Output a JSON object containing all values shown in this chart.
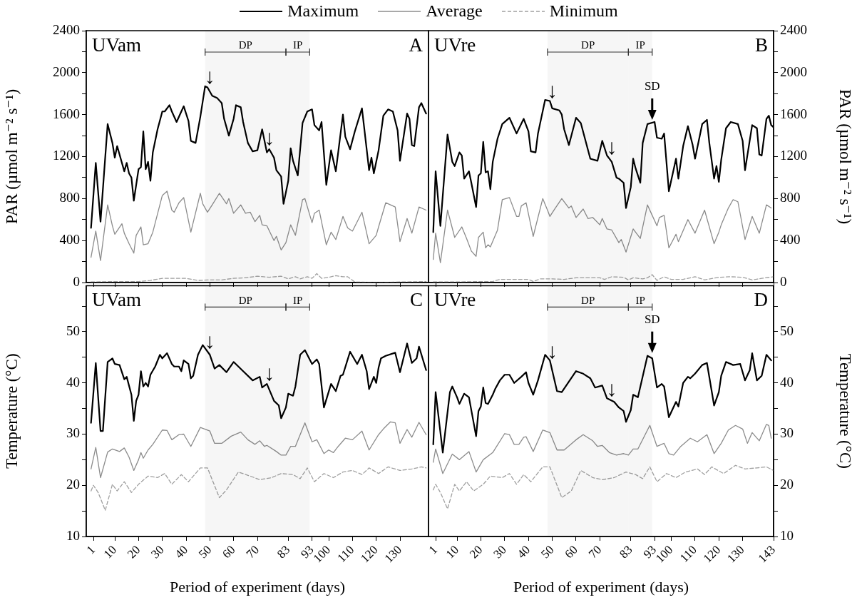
{
  "chart_data": [
    {
      "type": "line",
      "ylabel": "PAR (µmol m⁻² s⁻¹)",
      "xlim": [
        -2,
        142
      ],
      "xticks": [
        1,
        10,
        20,
        30,
        40,
        50,
        60,
        70,
        83,
        93,
        100,
        110,
        120,
        130
      ],
      "ylim": [
        0,
        2400
      ],
      "yticks": [
        0,
        {
          "value": 200,
          "label": null
        },
        400,
        {
          "value": 600,
          "label": null
        },
        800,
        {
          "value": 1000,
          "label": null
        },
        1200,
        {
          "value": 1400,
          "label": null
        },
        1600,
        {
          "value": 1800,
          "label": null
        },
        2000,
        {
          "value": 2200,
          "label": null
        },
        2400
      ],
      "tick_labels": "y",
      "legend": "top",
      "series": [
        {
          "name": "Maximum",
          "color": "#000000",
          "line_style": "solid",
          "x": [
            0,
            2,
            4,
            7,
            9,
            10,
            11,
            14,
            15,
            16,
            17,
            18,
            20,
            21,
            22,
            23,
            24,
            25,
            26,
            28,
            30,
            31,
            33,
            34,
            36,
            38,
            39,
            41,
            42,
            44,
            46,
            48,
            49,
            51,
            53,
            55,
            56,
            58,
            60,
            61,
            63,
            64,
            66,
            68,
            70,
            72,
            74,
            75,
            77,
            78,
            80,
            81,
            83,
            84,
            85,
            87,
            89,
            91,
            93,
            94,
            96,
            97,
            99,
            101,
            103,
            106,
            107,
            109,
            111,
            114,
            117,
            118,
            119,
            121,
            123,
            125,
            127,
            129,
            130,
            133,
            134,
            135,
            136,
            138,
            139,
            141
          ],
          "values": [
            520,
            1140,
            580,
            1510,
            1330,
            1190,
            1300,
            1060,
            1140,
            1040,
            1000,
            780,
            1080,
            1100,
            1440,
            1080,
            1150,
            970,
            1240,
            1460,
            1630,
            1630,
            1690,
            1630,
            1530,
            1630,
            1680,
            1540,
            1350,
            1330,
            1580,
            1870,
            1860,
            1780,
            1760,
            1710,
            1560,
            1400,
            1560,
            1690,
            1670,
            1530,
            1330,
            1250,
            1260,
            1460,
            1240,
            1270,
            1190,
            1070,
            1010,
            750,
            970,
            1280,
            1160,
            1020,
            1520,
            1630,
            1650,
            1500,
            1450,
            1530,
            930,
            1260,
            1060,
            1600,
            1390,
            1270,
            1440,
            1660,
            1070,
            1190,
            1040,
            1260,
            1590,
            1650,
            1630,
            1450,
            1160,
            1610,
            1560,
            1310,
            1300,
            1670,
            1710,
            1610
          ]
        },
        {
          "name": "Average",
          "color": "#8c8c8c",
          "line_style": "solid",
          "x": [
            0,
            2,
            4,
            7,
            9,
            10,
            13,
            14,
            16,
            18,
            19,
            21,
            22,
            24,
            26,
            30,
            32,
            34,
            35,
            37,
            39,
            42,
            46,
            47,
            49,
            51,
            54,
            57,
            58,
            60,
            63,
            65,
            67,
            69,
            71,
            72,
            74,
            77,
            78,
            80,
            82,
            84,
            86,
            89,
            90,
            93,
            94,
            96,
            99,
            101,
            103,
            106,
            108,
            110,
            114,
            117,
            120,
            121,
            124,
            128,
            130,
            133,
            135,
            138,
            141
          ],
          "values": [
            240,
            490,
            210,
            740,
            540,
            460,
            560,
            470,
            370,
            280,
            450,
            530,
            360,
            370,
            480,
            830,
            870,
            690,
            670,
            760,
            810,
            480,
            850,
            750,
            670,
            740,
            850,
            750,
            800,
            660,
            740,
            660,
            670,
            580,
            640,
            550,
            540,
            400,
            440,
            310,
            380,
            550,
            450,
            790,
            800,
            570,
            660,
            690,
            360,
            480,
            410,
            630,
            520,
            490,
            670,
            370,
            450,
            530,
            760,
            720,
            390,
            610,
            470,
            720,
            690
          ]
        },
        {
          "name": "Minimum",
          "color": "#a0a0a0",
          "line_style": "dashed",
          "x": [
            0,
            10,
            20,
            25,
            30,
            40,
            45,
            50,
            55,
            60,
            65,
            70,
            75,
            80,
            83,
            86,
            88,
            91,
            93,
            95,
            97,
            100,
            103,
            106,
            108,
            111,
            120,
            130,
            141
          ],
          "values": [
            5,
            10,
            10,
            20,
            40,
            40,
            20,
            25,
            25,
            40,
            45,
            60,
            50,
            60,
            35,
            55,
            35,
            55,
            40,
            85,
            40,
            50,
            65,
            55,
            55,
            5,
            0,
            5,
            10
          ]
        }
      ],
      "bands": [
        {
          "axis": "x",
          "from": 48,
          "to": 82,
          "label": "DP"
        },
        {
          "axis": "x",
          "from": 82,
          "to": 92,
          "label": "IP"
        }
      ],
      "annotations": [
        "UVam",
        "A",
        {
          "text": "↓",
          "x": 50,
          "y": 1880
        },
        {
          "text": "↓",
          "x": 75,
          "y": 1300
        }
      ]
    },
    {
      "type": "line",
      "ylabel": "PAR (µmol m⁻² s⁻¹)",
      "xlim": [
        -2,
        143
      ],
      "xticks": [
        1,
        10,
        20,
        30,
        40,
        50,
        60,
        70,
        83,
        93,
        100,
        110,
        120,
        130,
        143
      ],
      "ylim": [
        0,
        2400
      ],
      "yticks": [
        0,
        {
          "value": 200,
          "label": null
        },
        400,
        {
          "value": 600,
          "label": null
        },
        800,
        {
          "value": 1000,
          "label": null
        },
        1200,
        {
          "value": 1400,
          "label": null
        },
        1600,
        {
          "value": 1800,
          "label": null
        },
        2000,
        {
          "value": 2200,
          "label": null
        },
        2400
      ],
      "tick_labels": "y",
      "series": [
        {
          "color": "#000000",
          "line_style": "solid",
          "x": [
            0,
            1,
            3,
            6,
            8,
            9,
            11,
            12,
            13,
            15,
            16,
            18,
            19,
            20,
            21,
            22,
            23,
            24,
            25,
            27,
            29,
            32,
            35,
            38,
            40,
            41,
            43,
            44,
            47,
            49,
            50,
            53,
            54,
            55,
            57,
            60,
            62,
            64,
            66,
            69,
            71,
            73,
            74,
            75,
            77,
            78,
            80,
            81,
            83,
            84,
            85,
            87,
            88,
            90,
            93,
            94,
            96,
            97,
            99,
            102,
            103,
            105,
            107,
            109,
            110,
            113,
            115,
            116,
            118,
            119,
            120,
            121,
            123,
            125,
            128,
            130,
            131,
            134,
            136,
            137,
            138,
            140,
            141,
            142,
            143
          ],
          "values": [
            480,
            1060,
            540,
            1410,
            1150,
            1110,
            1240,
            1210,
            990,
            1060,
            950,
            720,
            1020,
            1040,
            1340,
            1050,
            1060,
            890,
            1150,
            1370,
            1510,
            1570,
            1420,
            1560,
            1440,
            1250,
            1240,
            1420,
            1740,
            1730,
            1660,
            1640,
            1600,
            1460,
            1310,
            1570,
            1520,
            1350,
            1180,
            1160,
            1350,
            1210,
            1180,
            1150,
            1000,
            990,
            950,
            710,
            910,
            1180,
            1090,
            950,
            1330,
            1510,
            1530,
            1380,
            1370,
            1420,
            870,
            1180,
            990,
            1300,
            1490,
            1310,
            1180,
            1510,
            1550,
            1330,
            990,
            1110,
            960,
            1170,
            1470,
            1530,
            1510,
            1350,
            1070,
            1500,
            1470,
            1220,
            1210,
            1560,
            1590,
            1500,
            1480
          ]
        },
        {
          "color": "#8c8c8c",
          "line_style": "solid",
          "x": [
            0,
            1,
            3,
            6,
            9,
            12,
            14,
            16,
            18,
            19,
            21,
            22,
            23,
            24,
            27,
            29,
            32,
            35,
            36,
            37,
            39,
            42,
            46,
            48,
            49,
            51,
            54,
            57,
            58,
            60,
            63,
            65,
            67,
            70,
            71,
            73,
            75,
            78,
            79,
            81,
            84,
            85,
            87,
            90,
            92,
            94,
            95,
            97,
            99,
            102,
            103,
            107,
            110,
            114,
            118,
            120,
            121,
            124,
            126,
            128,
            131,
            134,
            137,
            140,
            142
          ],
          "values": [
            220,
            470,
            190,
            690,
            430,
            530,
            420,
            300,
            250,
            430,
            480,
            330,
            360,
            340,
            500,
            790,
            810,
            630,
            630,
            730,
            760,
            440,
            800,
            690,
            630,
            700,
            800,
            710,
            730,
            620,
            700,
            610,
            620,
            550,
            610,
            510,
            500,
            380,
            410,
            290,
            510,
            480,
            420,
            740,
            640,
            540,
            620,
            640,
            330,
            460,
            390,
            600,
            470,
            690,
            370,
            480,
            550,
            710,
            790,
            770,
            410,
            630,
            470,
            740,
            710
          ]
        },
        {
          "color": "#a0a0a0",
          "line_style": "dashed",
          "x": [
            0,
            10,
            20,
            25,
            28,
            35,
            40,
            42,
            45,
            50,
            55,
            60,
            65,
            70,
            72,
            75,
            80,
            82,
            84,
            88,
            90,
            92,
            94,
            97,
            100,
            105,
            110,
            114,
            120,
            125,
            130,
            134,
            138,
            143
          ],
          "values": [
            5,
            5,
            10,
            10,
            30,
            30,
            30,
            10,
            35,
            35,
            30,
            45,
            45,
            45,
            30,
            55,
            50,
            25,
            45,
            35,
            45,
            75,
            20,
            55,
            30,
            30,
            55,
            25,
            50,
            55,
            50,
            25,
            40,
            55
          ]
        }
      ],
      "bands": [
        {
          "axis": "x",
          "from": 48,
          "to": 82,
          "label": "DP"
        },
        {
          "axis": "x",
          "from": 82,
          "to": 92,
          "label": "IP"
        }
      ],
      "annotations": [
        "UVre",
        "B",
        {
          "text": "↓",
          "x": 50,
          "y": 1750
        },
        {
          "text": "↓",
          "x": 75,
          "y": 1210
        },
        {
          "text": "SD",
          "x": 92,
          "y": 1523
        }
      ]
    },
    {
      "type": "line",
      "xlabel": "Period of experiment (days)",
      "ylabel": "Temperature (°C)",
      "xlim": [
        -2,
        142
      ],
      "xticks": [
        1,
        10,
        20,
        30,
        40,
        50,
        60,
        70,
        83,
        93,
        100,
        110,
        120,
        130
      ],
      "ylim": [
        10,
        59
      ],
      "yticks": [
        10,
        {
          "value": 15,
          "label": null
        },
        20,
        {
          "value": 25,
          "label": null
        },
        30,
        {
          "value": 35,
          "label": null
        },
        40,
        {
          "value": 45,
          "label": null
        },
        50,
        {
          "value": 55,
          "label": null
        }
      ],
      "series": [
        {
          "color": "#000000",
          "line_style": "solid",
          "x": [
            0,
            2,
            4,
            5,
            7,
            9,
            10,
            12,
            13,
            14,
            15,
            17,
            18,
            19,
            20,
            21,
            22,
            23,
            24,
            25,
            27,
            29,
            30,
            32,
            34,
            35,
            37,
            38,
            39,
            41,
            42,
            43,
            45,
            47,
            50,
            52,
            54,
            57,
            60,
            64,
            68,
            71,
            72,
            74,
            77,
            79,
            80,
            82,
            83,
            85,
            86,
            88,
            90,
            93,
            95,
            96,
            98,
            101,
            103,
            105,
            106,
            109,
            112,
            114,
            116,
            117,
            119,
            120,
            121,
            122,
            124,
            128,
            130,
            133,
            135,
            137,
            138,
            141
          ],
          "values": [
            32.2,
            43.9,
            30.6,
            30.6,
            44.1,
            44.8,
            43.7,
            43.5,
            42.1,
            40.7,
            41.2,
            37.7,
            32.6,
            36.5,
            37.7,
            42.3,
            39.3,
            40.0,
            39.3,
            41.6,
            43.2,
            45.5,
            44.8,
            45.8,
            43.7,
            43.2,
            43.2,
            42.3,
            44.4,
            43.7,
            40.9,
            41.4,
            45.5,
            47.4,
            45.5,
            42.8,
            43.5,
            42.1,
            44.1,
            42.3,
            40.5,
            41.2,
            39.1,
            39.8,
            36.5,
            35.6,
            33.1,
            35.2,
            37.9,
            37.5,
            39.3,
            45.5,
            46.4,
            43.7,
            44.6,
            43.7,
            35.2,
            39.8,
            38.4,
            41.4,
            41.6,
            46.1,
            43.7,
            45.5,
            42.3,
            38.8,
            41.2,
            40.0,
            43.0,
            44.8,
            45.3,
            45.9,
            42.1,
            47.7,
            43.9,
            44.8,
            47.1,
            42.5
          ]
        },
        {
          "color": "#8c8c8c",
          "line_style": "solid",
          "x": [
            0,
            2,
            4,
            7,
            9,
            12,
            14,
            16,
            18,
            20,
            21,
            22,
            24,
            26,
            30,
            32,
            34,
            37,
            39,
            42,
            46,
            50,
            52,
            55,
            59,
            63,
            66,
            69,
            71,
            73,
            74,
            78,
            80,
            82,
            84,
            86,
            90,
            93,
            95,
            98,
            100,
            102,
            104,
            107,
            110,
            114,
            117,
            121,
            123,
            126,
            128,
            130,
            133,
            135,
            138,
            141
          ],
          "values": [
            23.2,
            27.4,
            21.5,
            26.5,
            27.1,
            26.6,
            27.3,
            25.5,
            22.9,
            25.0,
            26.4,
            25.3,
            26.9,
            28.0,
            30.8,
            30.7,
            28.9,
            29.9,
            30.0,
            27.6,
            31.3,
            30.6,
            28.2,
            28.2,
            29.6,
            30.4,
            28.9,
            28.0,
            28.7,
            27.6,
            27.8,
            26.6,
            25.9,
            25.9,
            27.6,
            27.6,
            32.2,
            28.5,
            28.9,
            26.2,
            26.9,
            26.4,
            27.6,
            29.2,
            28.9,
            30.6,
            26.9,
            29.9,
            31.0,
            32.4,
            32.2,
            28.2,
            30.9,
            29.4,
            32.3,
            29.9
          ]
        },
        {
          "color": "#a0a0a0",
          "line_style": "dashed",
          "x": [
            0,
            1,
            3,
            6,
            9,
            11,
            14,
            17,
            20,
            24,
            28,
            31,
            34,
            38,
            41,
            46,
            49,
            54,
            57,
            62,
            67,
            71,
            76,
            80,
            85,
            88,
            91,
            94,
            98,
            102,
            106,
            110,
            114,
            117,
            121,
            125,
            130,
            135,
            139,
            141
          ],
          "values": [
            18.9,
            20.0,
            18.6,
            15.1,
            20.2,
            18.9,
            20.7,
            18.6,
            20.2,
            21.8,
            21.5,
            22.3,
            20.2,
            22.1,
            20.7,
            23.4,
            23.4,
            17.6,
            19.1,
            22.6,
            21.8,
            21.1,
            21.5,
            22.3,
            22.1,
            21.3,
            23.4,
            20.7,
            22.3,
            21.5,
            22.6,
            22.9,
            22.1,
            23.4,
            22.3,
            23.6,
            22.9,
            23.2,
            23.6,
            23.4
          ]
        }
      ],
      "bands": [
        {
          "axis": "x",
          "from": 48,
          "to": 82,
          "label": "DP"
        },
        {
          "axis": "x",
          "from": 82,
          "to": 92,
          "label": "IP"
        }
      ],
      "annotations": [
        "UVam",
        "C",
        {
          "text": "↓",
          "x": 50,
          "y": 46.5
        },
        {
          "text": "↓",
          "x": 75,
          "y": 40.2
        }
      ]
    },
    {
      "type": "line",
      "xlabel": "Period of experiment (days)",
      "ylabel": "Temperature (°C)",
      "xlim": [
        -2,
        143
      ],
      "xticks": [
        1,
        10,
        20,
        30,
        40,
        50,
        60,
        70,
        83,
        93,
        100,
        110,
        120,
        130,
        143
      ],
      "ylim": [
        10,
        59
      ],
      "yticks": [
        10,
        {
          "value": 15,
          "label": null
        },
        20,
        {
          "value": 25,
          "label": null
        },
        30,
        {
          "value": 35,
          "label": null
        },
        40,
        {
          "value": 45,
          "label": null
        },
        50,
        {
          "value": 55,
          "label": null
        }
      ],
      "series": [
        {
          "color": "#000000",
          "line_style": "solid",
          "x": [
            0,
            1,
            4,
            7,
            8,
            10,
            11,
            13,
            15,
            18,
            19,
            20,
            21,
            22,
            23,
            25,
            26,
            28,
            30,
            32,
            34,
            37,
            39,
            40,
            42,
            44,
            47,
            49,
            52,
            54,
            60,
            63,
            66,
            68,
            71,
            73,
            76,
            78,
            80,
            81,
            83,
            84,
            86,
            90,
            92,
            94,
            96,
            97,
            99,
            102,
            103,
            105,
            107,
            108,
            110,
            113,
            115,
            118,
            120,
            121,
            123,
            126,
            129,
            131,
            133,
            134,
            136,
            138,
            140,
            142
          ],
          "values": [
            28.0,
            38.2,
            26.4,
            38.2,
            39.3,
            37.2,
            35.9,
            37.9,
            37.2,
            29.6,
            34.5,
            35.4,
            39.1,
            36.1,
            35.9,
            37.7,
            38.8,
            40.5,
            41.6,
            41.6,
            40.0,
            41.2,
            42.1,
            40.0,
            37.7,
            40.5,
            45.5,
            44.4,
            38.4,
            38.2,
            42.3,
            41.8,
            40.9,
            39.1,
            39.5,
            37.0,
            36.3,
            35.2,
            34.5,
            32.4,
            34.7,
            37.7,
            37.2,
            45.3,
            44.8,
            39.1,
            39.8,
            39.3,
            33.3,
            36.3,
            35.4,
            40.0,
            41.2,
            40.9,
            41.8,
            43.5,
            43.9,
            35.6,
            38.2,
            41.4,
            44.1,
            43.5,
            43.7,
            40.5,
            42.5,
            45.8,
            40.5,
            41.4,
            45.5,
            44.4
          ]
        },
        {
          "color": "#8c8c8c",
          "line_style": "solid",
          "x": [
            0,
            1,
            4,
            8,
            11,
            15,
            18,
            21,
            25,
            30,
            32,
            34,
            36,
            38,
            39,
            42,
            46,
            49,
            52,
            55,
            60,
            63,
            67,
            69,
            71,
            74,
            77,
            80,
            82,
            84,
            86,
            91,
            94,
            97,
            99,
            101,
            104,
            108,
            111,
            115,
            118,
            121,
            124,
            127,
            130,
            132,
            134,
            137,
            140,
            141,
            142
          ],
          "values": [
            24.5,
            27.1,
            22.3,
            26.1,
            25.0,
            26.6,
            22.6,
            25.0,
            26.4,
            30.1,
            29.9,
            28.0,
            28.0,
            29.4,
            29.5,
            26.6,
            30.8,
            30.3,
            26.9,
            26.9,
            28.9,
            29.9,
            28.7,
            27.6,
            27.8,
            26.4,
            25.9,
            26.2,
            25.9,
            27.1,
            27.1,
            31.7,
            27.6,
            28.2,
            26.2,
            25.9,
            27.6,
            29.2,
            28.5,
            29.9,
            26.2,
            28.2,
            30.8,
            31.7,
            31.0,
            28.2,
            30.3,
            28.7,
            31.9,
            31.7,
            29.2
          ]
        },
        {
          "color": "#a0a0a0",
          "line_style": "dashed",
          "x": [
            0,
            1,
            3,
            6,
            9,
            11,
            14,
            17,
            21,
            24,
            29,
            32,
            35,
            38,
            41,
            46,
            49,
            54,
            58,
            62,
            67,
            71,
            76,
            81,
            85,
            88,
            91,
            94,
            98,
            102,
            106,
            111,
            114,
            117,
            122,
            127,
            131,
            136,
            140,
            143
          ],
          "values": [
            19.1,
            20.2,
            18.6,
            15.4,
            20.2,
            18.9,
            20.7,
            18.9,
            20.2,
            21.8,
            21.5,
            22.3,
            20.2,
            22.1,
            20.7,
            23.6,
            23.6,
            17.6,
            18.9,
            22.9,
            21.5,
            21.1,
            21.5,
            22.6,
            22.1,
            21.3,
            23.6,
            20.7,
            22.3,
            21.5,
            22.6,
            23.2,
            22.1,
            23.6,
            22.3,
            23.9,
            23.2,
            23.4,
            23.6,
            22.9
          ]
        }
      ],
      "bands": [
        {
          "axis": "x",
          "from": 48,
          "to": 82,
          "label": "DP"
        },
        {
          "axis": "x",
          "from": 82,
          "to": 92,
          "label": "IP"
        }
      ],
      "annotations": [
        "UVre",
        "D",
        {
          "text": "↓",
          "x": 50,
          "y": 44.6
        },
        {
          "text": "↓",
          "x": 75,
          "y": 37.2
        },
        {
          "text": "SD",
          "x": 92,
          "y": 45.3
        }
      ]
    }
  ]
}
